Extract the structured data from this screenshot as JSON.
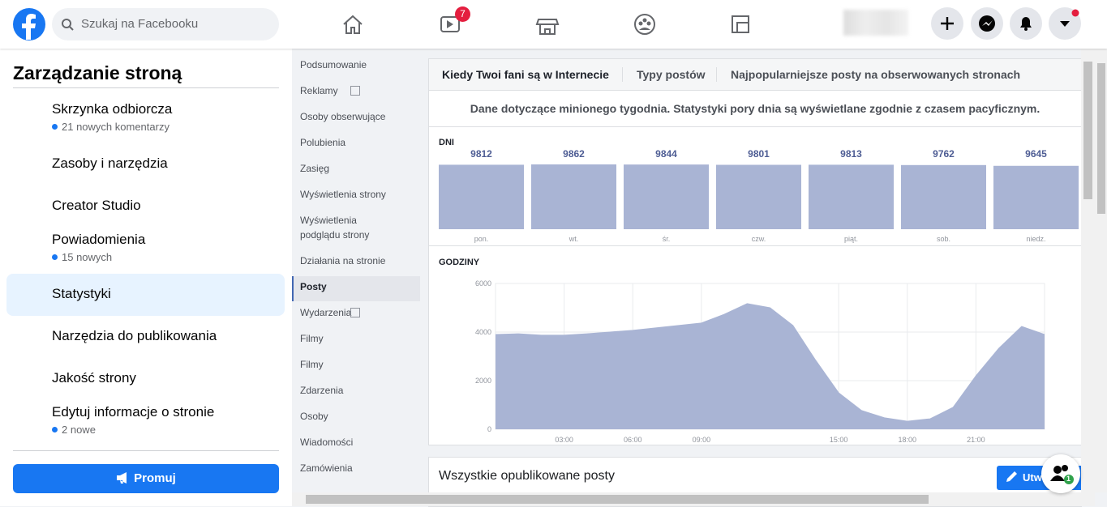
{
  "header": {
    "search_placeholder": "Szukaj na Facebooku",
    "watch_badge": "7"
  },
  "sidebar": {
    "title": "Zarządzanie stroną",
    "items": [
      {
        "label": "Skrzynka odbiorcza",
        "detail": "21 nowych komentarzy"
      },
      {
        "label": "Zasoby i narzędzia"
      },
      {
        "label": "Creator Studio"
      },
      {
        "label": "Powiadomienia",
        "detail": "15 nowych"
      },
      {
        "label": "Statystyki"
      },
      {
        "label": "Narzędzia do publikowania"
      },
      {
        "label": "Jakość strony"
      },
      {
        "label": "Edytuj informacje o stronie",
        "detail": "2 nowe"
      }
    ],
    "active_item": 4,
    "promote_button": "Promuj"
  },
  "subnav": {
    "items": [
      "Podsumowanie",
      "Reklamy",
      "Osoby obserwujące",
      "Polubienia",
      "Zasięg",
      "Wyświetlenia strony",
      "Wyświetlenia podglądu strony",
      "Działania na stronie",
      "Posty",
      "Wydarzenia",
      "Filmy",
      "Filmy",
      "Zdarzenia",
      "Osoby",
      "Wiadomości",
      "Zamówienia"
    ],
    "active_item": 8
  },
  "tabs": [
    "Kiedy Twoi fani są w Internecie",
    "Typy postów",
    "Najpopularniejsze posty na obserwowanych stronach"
  ],
  "notice": "Dane dotyczące minionego tygodnia. Statystyki pory dnia są wyświetlane zgodnie z czasem pacyficznym.",
  "chart_data": [
    {
      "type": "bar",
      "title": "DNI",
      "categories": [
        "pon.",
        "wt.",
        "śr.",
        "czw.",
        "piąt.",
        "sob.",
        "niedz."
      ],
      "values": [
        9812,
        9862,
        9844,
        9801,
        9813,
        9762,
        9645
      ],
      "color": "#a9b4d4"
    },
    {
      "type": "area",
      "title": "GODZINY",
      "x": [
        0,
        1,
        2,
        3,
        4,
        5,
        6,
        7,
        8,
        9,
        10,
        11,
        12,
        13,
        14,
        15,
        16,
        17,
        18,
        19,
        20,
        21,
        22,
        23,
        24
      ],
      "values": [
        3900,
        3930,
        3870,
        3870,
        3930,
        4000,
        4070,
        4170,
        4270,
        4370,
        4730,
        5170,
        5000,
        4270,
        2830,
        1500,
        770,
        470,
        330,
        430,
        900,
        2200,
        3330,
        4230,
        3900
      ],
      "color": "#a9b4d4",
      "xlim": [
        0,
        24
      ],
      "ylim": [
        0,
        6000
      ],
      "yticks": [
        0,
        2000,
        4000,
        6000
      ],
      "xticks": [
        {
          "value": 3,
          "label": "03:00"
        },
        {
          "value": 6,
          "label": "06:00"
        },
        {
          "value": 9,
          "label": "09:00"
        },
        {
          "value": 15,
          "label": "15:00"
        },
        {
          "value": 18,
          "label": "18:00"
        },
        {
          "value": 21,
          "label": "21:00"
        }
      ],
      "grid": true
    }
  ],
  "posts_section": {
    "title": "Wszystkie opublikowane posty",
    "create_button": "Utwórz"
  },
  "chat_badge": "1"
}
